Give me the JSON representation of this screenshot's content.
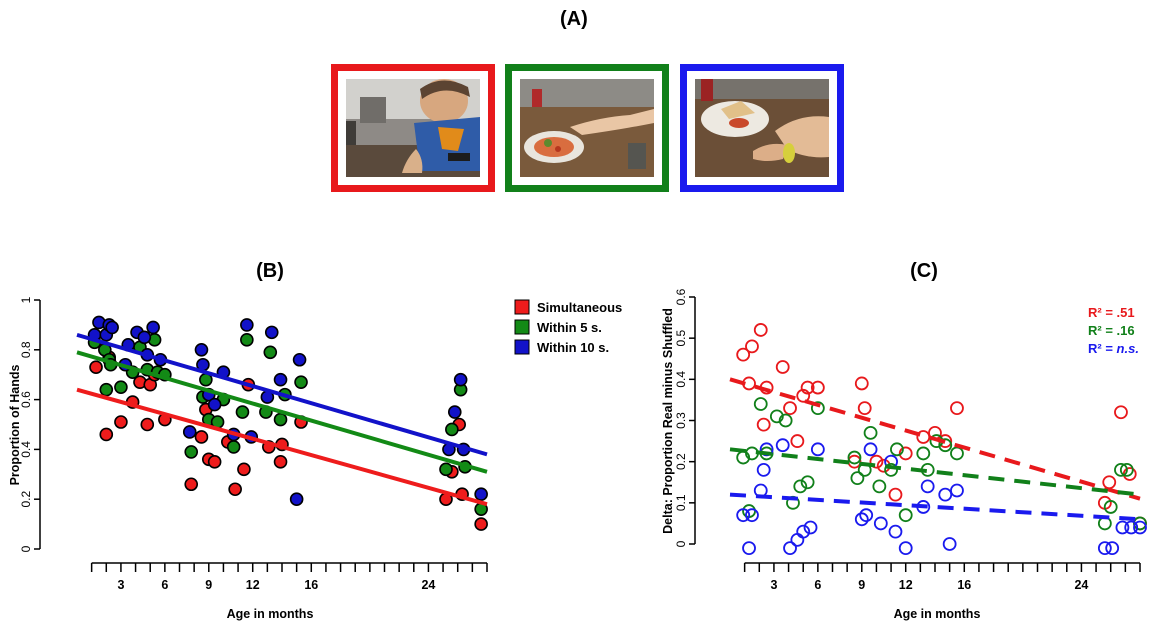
{
  "panel_a": {
    "title": "(A)",
    "frames": [
      {
        "border_color": "#e8191c"
      },
      {
        "border_color": "#11801a"
      },
      {
        "border_color": "#1a1aee"
      }
    ]
  },
  "chart_data": [
    {
      "panel": "(B)",
      "type": "scatter",
      "title": "(B)",
      "xlabel": "Age in months",
      "ylabel": "Proportion of Hands",
      "xticks": [
        3,
        6,
        9,
        12,
        16,
        24
      ],
      "xlim": [
        0,
        28
      ],
      "ylim": [
        0,
        1
      ],
      "yticks": [
        "0",
        "0.2",
        "0.4",
        "0.6",
        "0.8",
        "1"
      ],
      "legend_position": "right",
      "point_style": "filled",
      "series": [
        {
          "name": "Simultaneous",
          "color": "#ee1c1c",
          "fit": {
            "x": [
              0,
              28
            ],
            "y": [
              0.64,
              0.18
            ]
          },
          "points": [
            [
              1.3,
              0.73
            ],
            [
              2.0,
              0.46
            ],
            [
              2.2,
              0.77
            ],
            [
              3.0,
              0.51
            ],
            [
              3.8,
              0.59
            ],
            [
              4.3,
              0.67
            ],
            [
              4.8,
              0.5
            ],
            [
              5.0,
              0.66
            ],
            [
              5.3,
              0.7
            ],
            [
              6.0,
              0.52
            ],
            [
              7.8,
              0.26
            ],
            [
              8.5,
              0.45
            ],
            [
              8.8,
              0.56
            ],
            [
              9.0,
              0.36
            ],
            [
              9.4,
              0.35
            ],
            [
              10.3,
              0.43
            ],
            [
              10.8,
              0.24
            ],
            [
              11.4,
              0.32
            ],
            [
              11.7,
              0.66
            ],
            [
              13.1,
              0.41
            ],
            [
              13.9,
              0.35
            ],
            [
              14.0,
              0.42
            ],
            [
              15.3,
              0.51
            ],
            [
              25.2,
              0.2
            ],
            [
              25.6,
              0.31
            ],
            [
              26.1,
              0.5
            ],
            [
              26.3,
              0.22
            ],
            [
              27.6,
              0.1
            ]
          ]
        },
        {
          "name": "Within 5 s.",
          "color": "#138a16",
          "fit": {
            "x": [
              0,
              28
            ],
            "y": [
              0.79,
              0.31
            ]
          },
          "points": [
            [
              1.2,
              0.83
            ],
            [
              1.9,
              0.8
            ],
            [
              2.2,
              0.76
            ],
            [
              2.3,
              0.74
            ],
            [
              2.0,
              0.64
            ],
            [
              3.0,
              0.65
            ],
            [
              3.8,
              0.71
            ],
            [
              4.3,
              0.81
            ],
            [
              4.8,
              0.72
            ],
            [
              5.3,
              0.84
            ],
            [
              5.5,
              0.71
            ],
            [
              6.0,
              0.7
            ],
            [
              7.8,
              0.39
            ],
            [
              8.6,
              0.61
            ],
            [
              8.8,
              0.68
            ],
            [
              9.0,
              0.52
            ],
            [
              9.6,
              0.51
            ],
            [
              10.0,
              0.6
            ],
            [
              10.7,
              0.41
            ],
            [
              11.3,
              0.55
            ],
            [
              11.6,
              0.84
            ],
            [
              12.9,
              0.55
            ],
            [
              13.2,
              0.79
            ],
            [
              13.9,
              0.52
            ],
            [
              14.2,
              0.62
            ],
            [
              15.3,
              0.67
            ],
            [
              25.2,
              0.32
            ],
            [
              25.6,
              0.48
            ],
            [
              26.2,
              0.64
            ],
            [
              26.5,
              0.33
            ],
            [
              27.6,
              0.16
            ]
          ]
        },
        {
          "name": "Within 10 s.",
          "color": "#1212c9",
          "fit": {
            "x": [
              0,
              28
            ],
            "y": [
              0.86,
              0.38
            ]
          },
          "points": [
            [
              1.2,
              0.86
            ],
            [
              1.5,
              0.91
            ],
            [
              2.0,
              0.86
            ],
            [
              2.2,
              0.9
            ],
            [
              2.4,
              0.89
            ],
            [
              3.3,
              0.74
            ],
            [
              3.5,
              0.82
            ],
            [
              4.1,
              0.87
            ],
            [
              4.6,
              0.85
            ],
            [
              4.8,
              0.78
            ],
            [
              5.2,
              0.89
            ],
            [
              5.7,
              0.76
            ],
            [
              7.7,
              0.47
            ],
            [
              8.5,
              0.8
            ],
            [
              8.6,
              0.74
            ],
            [
              9.0,
              0.62
            ],
            [
              9.4,
              0.58
            ],
            [
              10.0,
              0.71
            ],
            [
              10.7,
              0.46
            ],
            [
              11.6,
              0.9
            ],
            [
              11.9,
              0.45
            ],
            [
              13.0,
              0.61
            ],
            [
              13.3,
              0.87
            ],
            [
              13.9,
              0.68
            ],
            [
              15.2,
              0.76
            ],
            [
              15.0,
              0.2
            ],
            [
              25.4,
              0.4
            ],
            [
              25.8,
              0.55
            ],
            [
              26.2,
              0.68
            ],
            [
              26.4,
              0.4
            ],
            [
              27.6,
              0.22
            ]
          ]
        }
      ]
    },
    {
      "panel": "(C)",
      "type": "scatter",
      "title": "(C)",
      "xlabel": "Age in months",
      "ylabel": "Delta: Proportion Real minus Shuffled",
      "xticks": [
        3,
        6,
        9,
        12,
        16,
        24
      ],
      "xlim": [
        0,
        28
      ],
      "ylim": [
        0,
        0.6
      ],
      "yticks": [
        "0",
        "0.1",
        "0.2",
        "0.3",
        "0.4",
        "0.5",
        "0.6"
      ],
      "point_style": "open",
      "annotations": [
        {
          "label": "R² = ",
          "value": ".51",
          "italic": false,
          "color": "#e8191c"
        },
        {
          "label": "R² = ",
          "value": ".16",
          "italic": false,
          "color": "#11801a"
        },
        {
          "label": "R² = ",
          "value": "n.s.",
          "italic": true,
          "color": "#1a1aee"
        }
      ],
      "series": [
        {
          "color": "#e8191c",
          "fit": {
            "x": [
              0,
              28
            ],
            "y": [
              0.4,
              0.11
            ]
          },
          "points": [
            [
              0.9,
              0.46
            ],
            [
              1.3,
              0.39
            ],
            [
              1.5,
              0.48
            ],
            [
              2.1,
              0.52
            ],
            [
              2.3,
              0.29
            ],
            [
              2.5,
              0.38
            ],
            [
              3.6,
              0.43
            ],
            [
              4.1,
              0.33
            ],
            [
              4.6,
              0.25
            ],
            [
              5.0,
              0.36
            ],
            [
              5.3,
              0.38
            ],
            [
              6.0,
              0.38
            ],
            [
              8.5,
              0.2
            ],
            [
              9.0,
              0.39
            ],
            [
              9.2,
              0.33
            ],
            [
              10.0,
              0.2
            ],
            [
              10.5,
              0.19
            ],
            [
              11.3,
              0.12
            ],
            [
              12.0,
              0.22
            ],
            [
              13.2,
              0.26
            ],
            [
              14.0,
              0.27
            ],
            [
              14.7,
              0.25
            ],
            [
              15.5,
              0.33
            ],
            [
              25.6,
              0.1
            ],
            [
              25.9,
              0.15
            ],
            [
              26.7,
              0.32
            ],
            [
              27.3,
              0.17
            ],
            [
              28.0,
              0.05
            ]
          ]
        },
        {
          "color": "#11801a",
          "fit": {
            "x": [
              0,
              28
            ],
            "y": [
              0.23,
              0.12
            ]
          },
          "points": [
            [
              0.9,
              0.21
            ],
            [
              1.3,
              0.08
            ],
            [
              1.5,
              0.22
            ],
            [
              2.1,
              0.34
            ],
            [
              2.5,
              0.22
            ],
            [
              3.2,
              0.31
            ],
            [
              3.8,
              0.3
            ],
            [
              4.3,
              0.1
            ],
            [
              4.8,
              0.14
            ],
            [
              5.3,
              0.15
            ],
            [
              6.0,
              0.33
            ],
            [
              8.5,
              0.21
            ],
            [
              8.7,
              0.16
            ],
            [
              9.2,
              0.18
            ],
            [
              9.6,
              0.27
            ],
            [
              10.2,
              0.14
            ],
            [
              11.0,
              0.18
            ],
            [
              11.4,
              0.23
            ],
            [
              12.0,
              0.07
            ],
            [
              13.2,
              0.22
            ],
            [
              13.5,
              0.18
            ],
            [
              14.1,
              0.25
            ],
            [
              14.7,
              0.24
            ],
            [
              15.5,
              0.22
            ],
            [
              25.6,
              0.05
            ],
            [
              26.0,
              0.09
            ],
            [
              26.7,
              0.18
            ],
            [
              27.1,
              0.18
            ],
            [
              28.0,
              0.05
            ]
          ]
        },
        {
          "color": "#1a1aee",
          "fit": {
            "x": [
              0,
              28
            ],
            "y": [
              0.12,
              0.06
            ]
          },
          "points": [
            [
              0.9,
              0.07
            ],
            [
              1.3,
              -0.01
            ],
            [
              1.5,
              0.07
            ],
            [
              2.1,
              0.13
            ],
            [
              2.3,
              0.18
            ],
            [
              2.5,
              0.23
            ],
            [
              3.6,
              0.24
            ],
            [
              4.1,
              -0.01
            ],
            [
              4.6,
              0.01
            ],
            [
              5.0,
              0.03
            ],
            [
              5.5,
              0.04
            ],
            [
              6.0,
              0.23
            ],
            [
              9.0,
              0.06
            ],
            [
              9.3,
              0.07
            ],
            [
              9.6,
              0.23
            ],
            [
              10.3,
              0.05
            ],
            [
              11.0,
              0.2
            ],
            [
              11.3,
              0.03
            ],
            [
              12.0,
              -0.01
            ],
            [
              13.2,
              0.09
            ],
            [
              13.5,
              0.14
            ],
            [
              14.7,
              0.12
            ],
            [
              15.5,
              0.13
            ],
            [
              15.0,
              0.0
            ],
            [
              25.6,
              -0.01
            ],
            [
              26.1,
              -0.01
            ],
            [
              26.8,
              0.04
            ],
            [
              27.4,
              0.04
            ],
            [
              28.0,
              0.04
            ]
          ]
        }
      ]
    }
  ]
}
